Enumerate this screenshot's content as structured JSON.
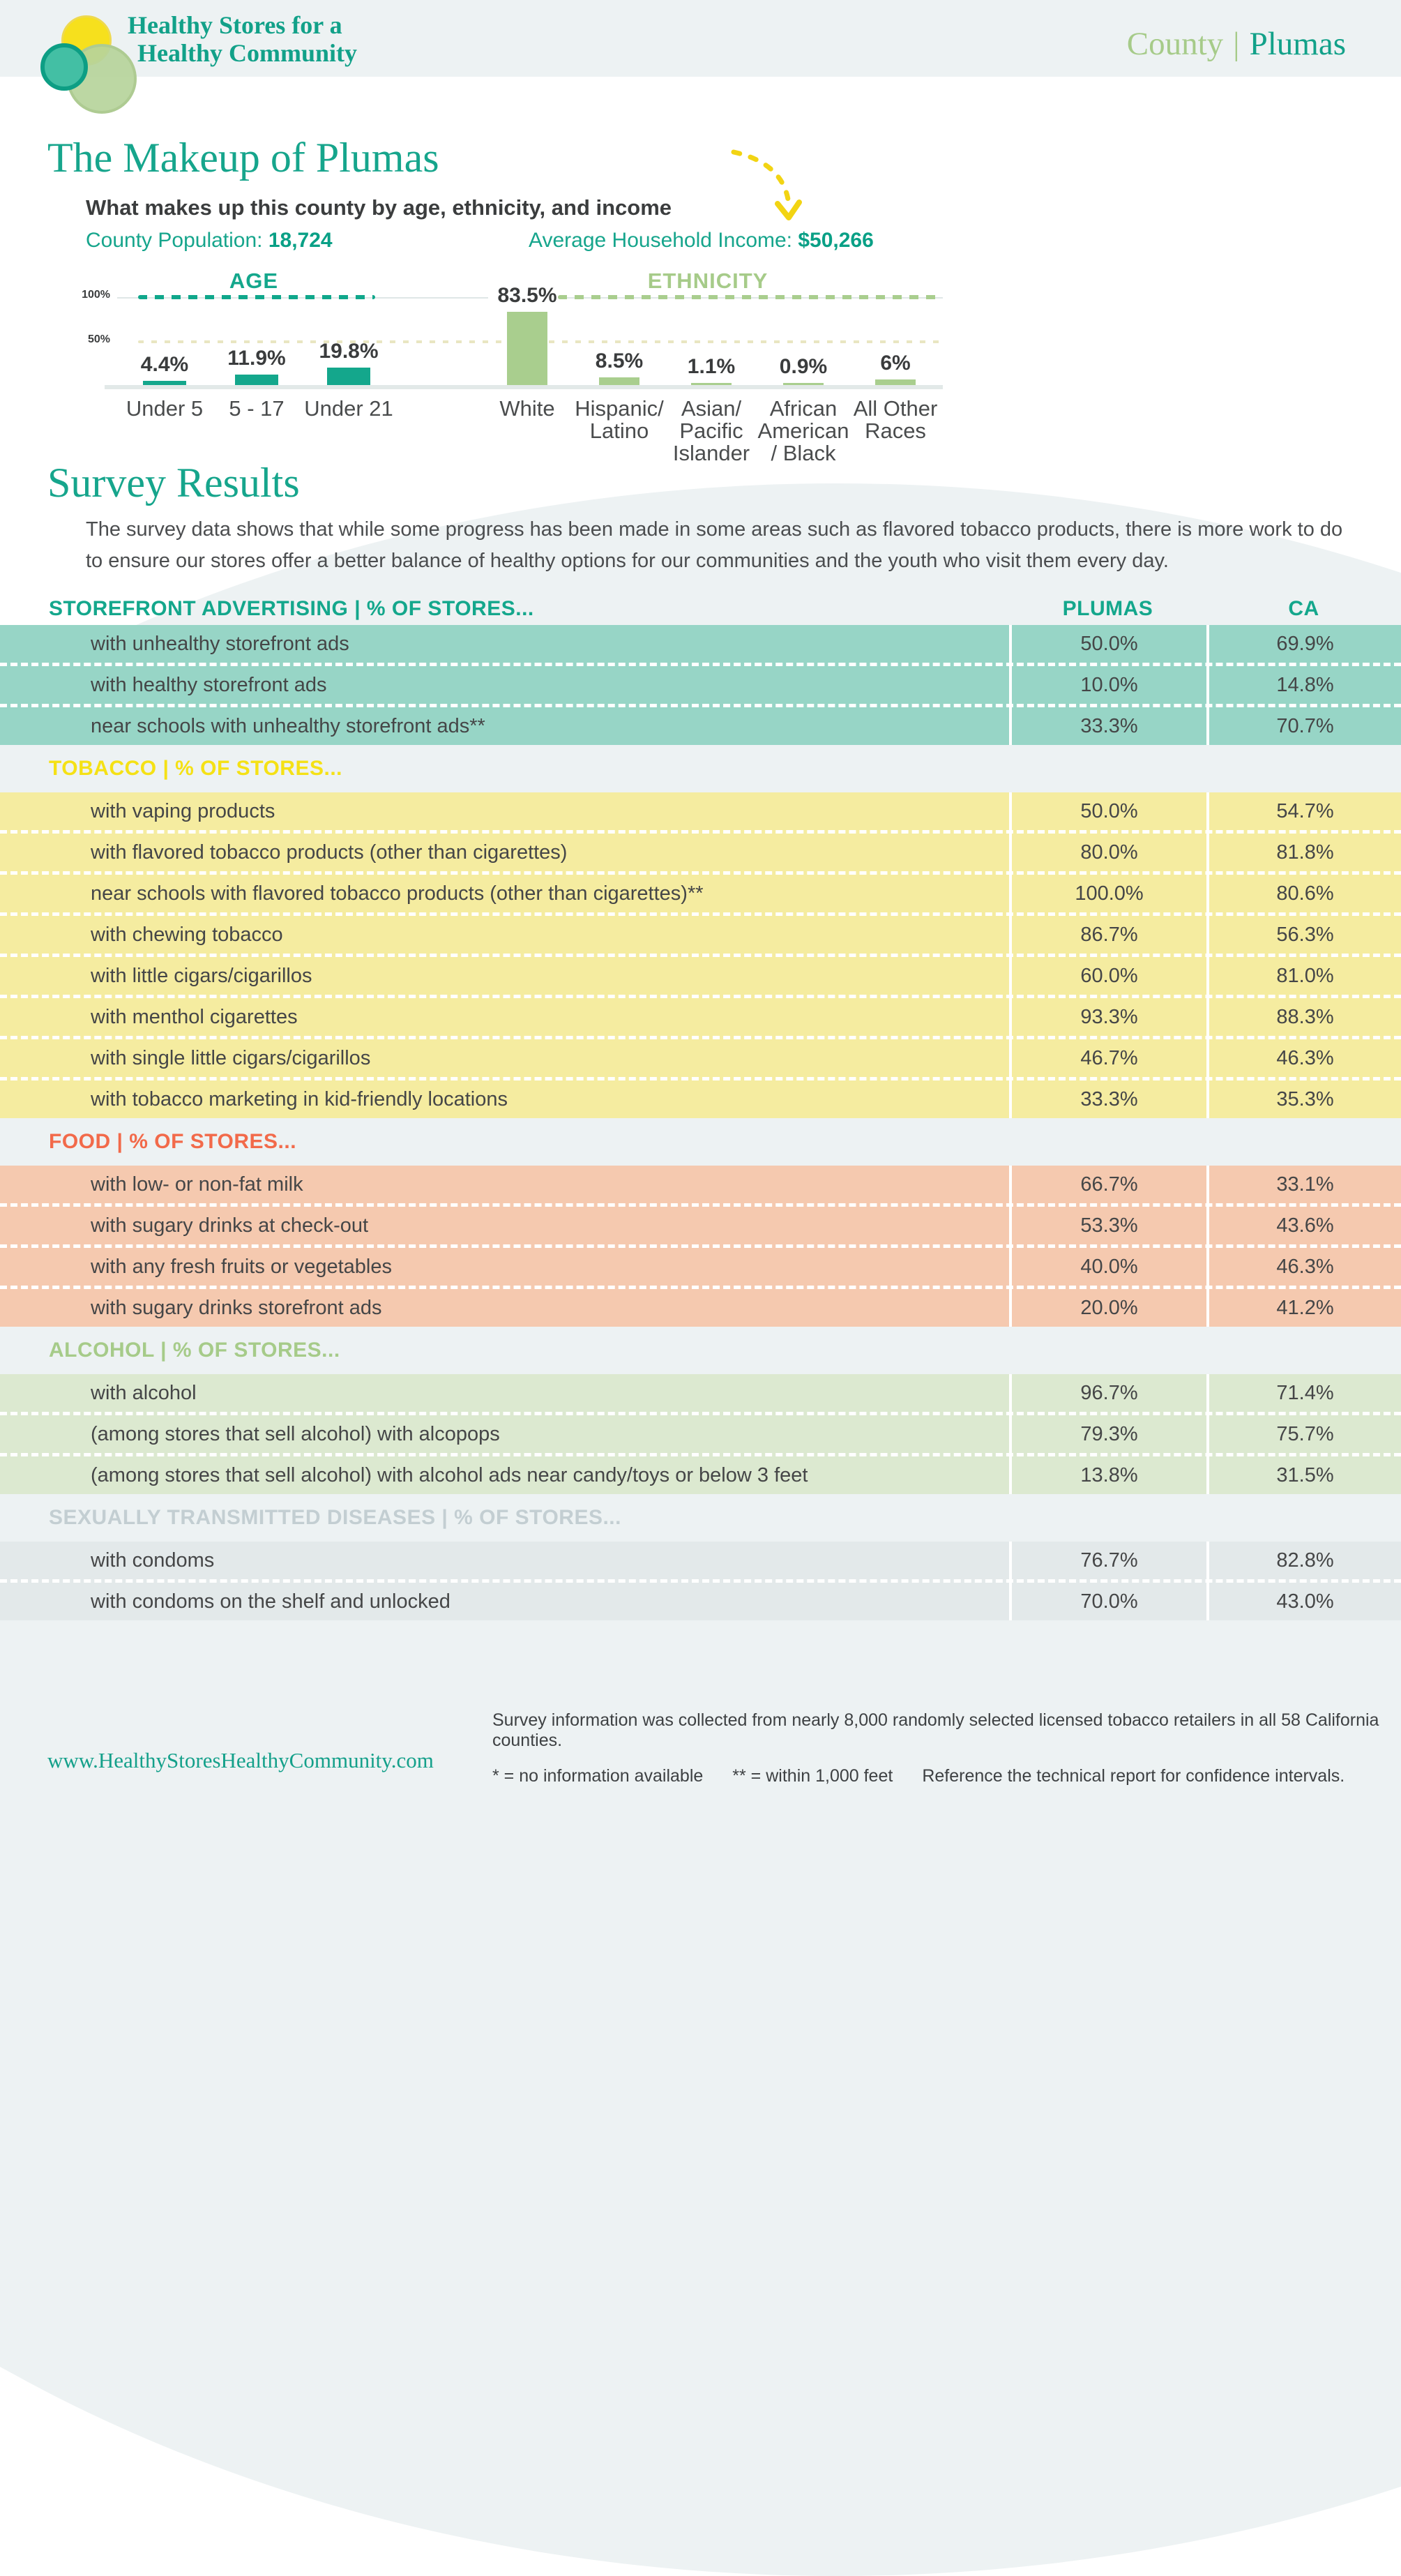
{
  "header": {
    "logo": {
      "line1": "Healthy Stores for a",
      "line2": "Healthy Community"
    },
    "county_label": "County",
    "county_divider": "|",
    "county_name": "Plumas"
  },
  "makeup": {
    "title": "The Makeup of Plumas",
    "subtitle": "What makes up this county by age, ethnicity, and income",
    "population_label": "County Population: ",
    "population_value": "18,724",
    "income_label": "Average Household Income: ",
    "income_value": "$50,266"
  },
  "chart_data": [
    {
      "type": "bar",
      "title": "AGE",
      "title_color": "#14a78c",
      "bar_color": "#14a78c",
      "categories": [
        "Under 5",
        "5 - 17",
        "Under 21"
      ],
      "values": [
        4.4,
        11.9,
        19.8
      ],
      "value_labels": [
        "4.4%",
        "11.9%",
        "19.8%"
      ],
      "ylim": [
        0,
        100
      ],
      "yticks": [
        "100%",
        "50%"
      ],
      "grid": "dashed horizontal lines at 50% and 100%",
      "legend": "none"
    },
    {
      "type": "bar",
      "title": "ETHNICITY",
      "title_color": "#a6cb89",
      "bar_color": "#a9ce8e",
      "categories": [
        "White",
        "Hispanic/\nLatino",
        "Asian/\nPacific\nIslander",
        "African\nAmerican\n/ Black",
        "All Other\nRaces"
      ],
      "values": [
        83.5,
        8.5,
        1.1,
        0.9,
        6
      ],
      "value_labels": [
        "83.5%",
        "8.5%",
        "1.1%",
        "0.9%",
        "6%"
      ],
      "ylim": [
        0,
        100
      ],
      "yticks": [
        "100%",
        "50%"
      ],
      "grid": "dashed horizontal lines at 50% and 100%",
      "legend": "none"
    }
  ],
  "survey": {
    "title": "Survey Results",
    "intro": "The survey data shows that while some progress has been made in some areas such as flavored tobacco products, there is more work to do to ensure our stores offer a better balance of healthy options for our communities and the youth who visit them every day.",
    "columns": {
      "plumas": "PLUMAS",
      "ca": "CA"
    },
    "sections": [
      {
        "heading": "STOREFRONT ADVERTISING | % OF STORES...",
        "heading_color": "#14a78c",
        "row_bg": "#97d5c6",
        "rows": [
          {
            "label": "with unhealthy storefront ads",
            "plumas": "50.0%",
            "ca": "69.9%"
          },
          {
            "label": "with healthy storefront ads",
            "plumas": "10.0%",
            "ca": "14.8%"
          },
          {
            "label": "near schools with unhealthy storefront ads**",
            "plumas": "33.3%",
            "ca": "70.7%"
          }
        ]
      },
      {
        "heading": "TOBACCO | % OF STORES...",
        "heading_color": "#f5e115",
        "row_bg": "#f5eca0",
        "rows": [
          {
            "label": "with vaping products",
            "plumas": "50.0%",
            "ca": "54.7%"
          },
          {
            "label": "with flavored tobacco products (other than cigarettes)",
            "plumas": "80.0%",
            "ca": "81.8%"
          },
          {
            "label": "near schools with flavored tobacco products (other than cigarettes)**",
            "plumas": "100.0%",
            "ca": "80.6%"
          },
          {
            "label": "with chewing tobacco",
            "plumas": "86.7%",
            "ca": "56.3%"
          },
          {
            "label": "with little cigars/cigarillos",
            "plumas": "60.0%",
            "ca": "81.0%"
          },
          {
            "label": "with menthol cigarettes",
            "plumas": "93.3%",
            "ca": "88.3%"
          },
          {
            "label": "with single little cigars/cigarillos",
            "plumas": "46.7%",
            "ca": "46.3%"
          },
          {
            "label": "with tobacco marketing in kid-friendly locations",
            "plumas": "33.3%",
            "ca": "35.3%"
          }
        ]
      },
      {
        "heading": "FOOD | % OF STORES...",
        "heading_color": "#f26a4a",
        "row_bg": "#f5c9af",
        "rows": [
          {
            "label": "with low- or non-fat milk",
            "plumas": "66.7%",
            "ca": "33.1%"
          },
          {
            "label": "with sugary drinks at check-out",
            "plumas": "53.3%",
            "ca": "43.6%"
          },
          {
            "label": "with any fresh fruits or vegetables",
            "plumas": "40.0%",
            "ca": "46.3%"
          },
          {
            "label": "with sugary drinks storefront ads",
            "plumas": "20.0%",
            "ca": "41.2%"
          }
        ]
      },
      {
        "heading": "ALCOHOL | % OF STORES...",
        "heading_color": "#a6cb89",
        "row_bg": "#dce9d0",
        "rows": [
          {
            "label": "with alcohol",
            "plumas": "96.7%",
            "ca": "71.4%"
          },
          {
            "label": "(among stores that sell alcohol) with alcopops",
            "plumas": "79.3%",
            "ca": "75.7%"
          },
          {
            "label": "(among stores that sell alcohol) with alcohol ads near candy/toys or below 3 feet",
            "plumas": "13.8%",
            "ca": "31.5%"
          }
        ]
      },
      {
        "heading": "SEXUALLY TRANSMITTED DISEASES | % OF STORES...",
        "heading_color": "#c3ced2",
        "row_bg": "#e3e9ea",
        "rows": [
          {
            "label": "with condoms",
            "plumas": "76.7%",
            "ca": "82.8%"
          },
          {
            "label": "with condoms on the shelf and unlocked",
            "plumas": "70.0%",
            "ca": "43.0%"
          }
        ]
      }
    ]
  },
  "footer": {
    "url": "www.HealthyStoresHealthyCommunity.com",
    "note_line1": "Survey information was collected from nearly 8,000 randomly selected licensed tobacco retailers in all 58 California counties.",
    "note_line2_parts": [
      "* = no information available",
      "** = within 1,000 feet",
      "Reference the technical report for confidence intervals."
    ]
  }
}
